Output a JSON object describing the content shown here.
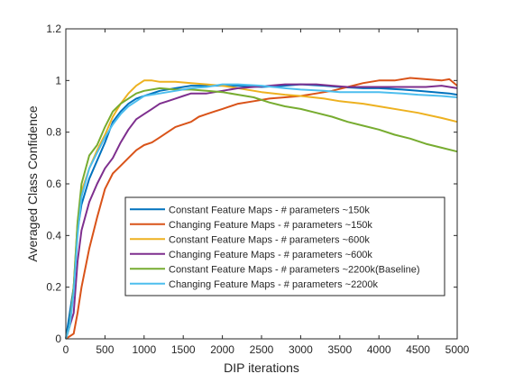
{
  "chart_data": {
    "type": "line",
    "title": "",
    "xlabel": "DIP iterations",
    "ylabel": "Averaged Class Confidence",
    "xlim": [
      0,
      5000
    ],
    "ylim": [
      0,
      1.2
    ],
    "xticks": [
      0,
      500,
      1000,
      1500,
      2000,
      2500,
      3000,
      3500,
      4000,
      4500,
      5000
    ],
    "yticks": [
      0,
      0.2,
      0.4,
      0.6,
      0.8,
      1,
      1.2
    ],
    "xtick_labels": [
      "0",
      "500",
      "1000",
      "1500",
      "2000",
      "2500",
      "3000",
      "3500",
      "4000",
      "4500",
      "5000"
    ],
    "ytick_labels": [
      "0",
      "0.2",
      "0.4",
      "0.6",
      "0.8",
      "1",
      "1.2"
    ],
    "grid": false,
    "legend_position": "lower-right",
    "series": [
      {
        "name": "Constant Feature Maps - # parameters ~150k",
        "color": "#0072BD",
        "x": [
          0,
          100,
          150,
          200,
          300,
          400,
          500,
          600,
          700,
          800,
          900,
          1000,
          1200,
          1400,
          1600,
          1800,
          2000,
          2200,
          2500,
          2800,
          3000,
          3300,
          3500,
          3800,
          4000,
          4300,
          4500,
          4700,
          4900,
          5000
        ],
        "y": [
          0.0,
          0.2,
          0.42,
          0.52,
          0.62,
          0.69,
          0.76,
          0.84,
          0.88,
          0.91,
          0.93,
          0.94,
          0.96,
          0.97,
          0.98,
          0.98,
          0.98,
          0.98,
          0.975,
          0.98,
          0.985,
          0.98,
          0.975,
          0.97,
          0.97,
          0.965,
          0.96,
          0.955,
          0.95,
          0.945
        ]
      },
      {
        "name": "Changing Feature Maps - # parameters ~150k",
        "color": "#D95319",
        "x": [
          0,
          100,
          150,
          200,
          300,
          400,
          500,
          600,
          700,
          800,
          900,
          1000,
          1100,
          1200,
          1300,
          1400,
          1500,
          1600,
          1700,
          1800,
          1900,
          2000,
          2200,
          2400,
          2600,
          2800,
          3000,
          3200,
          3400,
          3600,
          3800,
          4000,
          4200,
          4400,
          4600,
          4800,
          4900,
          5000
        ],
        "y": [
          0.0,
          0.02,
          0.1,
          0.2,
          0.35,
          0.47,
          0.58,
          0.64,
          0.67,
          0.7,
          0.73,
          0.75,
          0.76,
          0.78,
          0.8,
          0.82,
          0.83,
          0.84,
          0.86,
          0.87,
          0.88,
          0.89,
          0.91,
          0.92,
          0.93,
          0.935,
          0.94,
          0.95,
          0.96,
          0.975,
          0.99,
          1.0,
          1.0,
          1.01,
          1.005,
          1.0,
          1.005,
          0.98
        ]
      },
      {
        "name": "Constant Feature Maps - # parameters ~600k",
        "color": "#EDB120",
        "x": [
          0,
          50,
          100,
          150,
          200,
          300,
          400,
          500,
          600,
          700,
          800,
          900,
          1000,
          1100,
          1200,
          1400,
          1600,
          1800,
          2000,
          2200,
          2500,
          2800,
          3000,
          3300,
          3500,
          3800,
          4000,
          4300,
          4500,
          4800,
          5000
        ],
        "y": [
          0.0,
          0.05,
          0.2,
          0.45,
          0.57,
          0.66,
          0.73,
          0.79,
          0.86,
          0.91,
          0.95,
          0.98,
          1.0,
          1.0,
          0.995,
          0.995,
          0.99,
          0.985,
          0.98,
          0.97,
          0.955,
          0.945,
          0.94,
          0.93,
          0.92,
          0.91,
          0.9,
          0.885,
          0.875,
          0.855,
          0.84
        ]
      },
      {
        "name": "Changing Feature Maps - # parameters ~600k",
        "color": "#7E2F8E",
        "x": [
          0,
          100,
          150,
          200,
          300,
          400,
          500,
          600,
          700,
          800,
          900,
          1000,
          1100,
          1200,
          1300,
          1400,
          1500,
          1600,
          1800,
          2000,
          2200,
          2400,
          2600,
          2800,
          3000,
          3200,
          3400,
          3600,
          3800,
          4000,
          4200,
          4400,
          4600,
          4800,
          5000
        ],
        "y": [
          0.0,
          0.1,
          0.3,
          0.42,
          0.53,
          0.6,
          0.66,
          0.7,
          0.76,
          0.81,
          0.85,
          0.87,
          0.89,
          0.91,
          0.92,
          0.93,
          0.94,
          0.95,
          0.95,
          0.96,
          0.97,
          0.975,
          0.98,
          0.985,
          0.985,
          0.985,
          0.98,
          0.975,
          0.975,
          0.975,
          0.975,
          0.975,
          0.975,
          0.98,
          0.97
        ]
      },
      {
        "name": "Constant Feature Maps - # parameters ~2200k(Baseline)",
        "color": "#77AC30",
        "x": [
          0,
          50,
          100,
          150,
          200,
          300,
          400,
          500,
          600,
          700,
          800,
          900,
          1000,
          1100,
          1200,
          1400,
          1600,
          1800,
          2000,
          2200,
          2400,
          2600,
          2800,
          3000,
          3200,
          3400,
          3600,
          3800,
          4000,
          4200,
          4400,
          4600,
          4800,
          5000
        ],
        "y": [
          0.0,
          0.05,
          0.2,
          0.45,
          0.6,
          0.71,
          0.75,
          0.82,
          0.88,
          0.91,
          0.93,
          0.95,
          0.96,
          0.965,
          0.97,
          0.965,
          0.965,
          0.96,
          0.955,
          0.945,
          0.935,
          0.915,
          0.9,
          0.89,
          0.875,
          0.86,
          0.84,
          0.825,
          0.81,
          0.79,
          0.775,
          0.755,
          0.74,
          0.725
        ]
      },
      {
        "name": "Changing Feature Maps - # parameters ~2200k",
        "color": "#4DBEEE",
        "x": [
          0,
          50,
          100,
          150,
          200,
          300,
          400,
          500,
          600,
          700,
          800,
          900,
          1000,
          1200,
          1400,
          1600,
          1800,
          2000,
          2200,
          2500,
          2800,
          3000,
          3300,
          3500,
          3800,
          4000,
          4300,
          4500,
          4800,
          5000
        ],
        "y": [
          0.0,
          0.05,
          0.18,
          0.4,
          0.55,
          0.66,
          0.72,
          0.78,
          0.83,
          0.87,
          0.9,
          0.92,
          0.94,
          0.95,
          0.96,
          0.97,
          0.975,
          0.985,
          0.985,
          0.98,
          0.97,
          0.965,
          0.96,
          0.955,
          0.955,
          0.955,
          0.95,
          0.945,
          0.94,
          0.935
        ]
      }
    ]
  }
}
